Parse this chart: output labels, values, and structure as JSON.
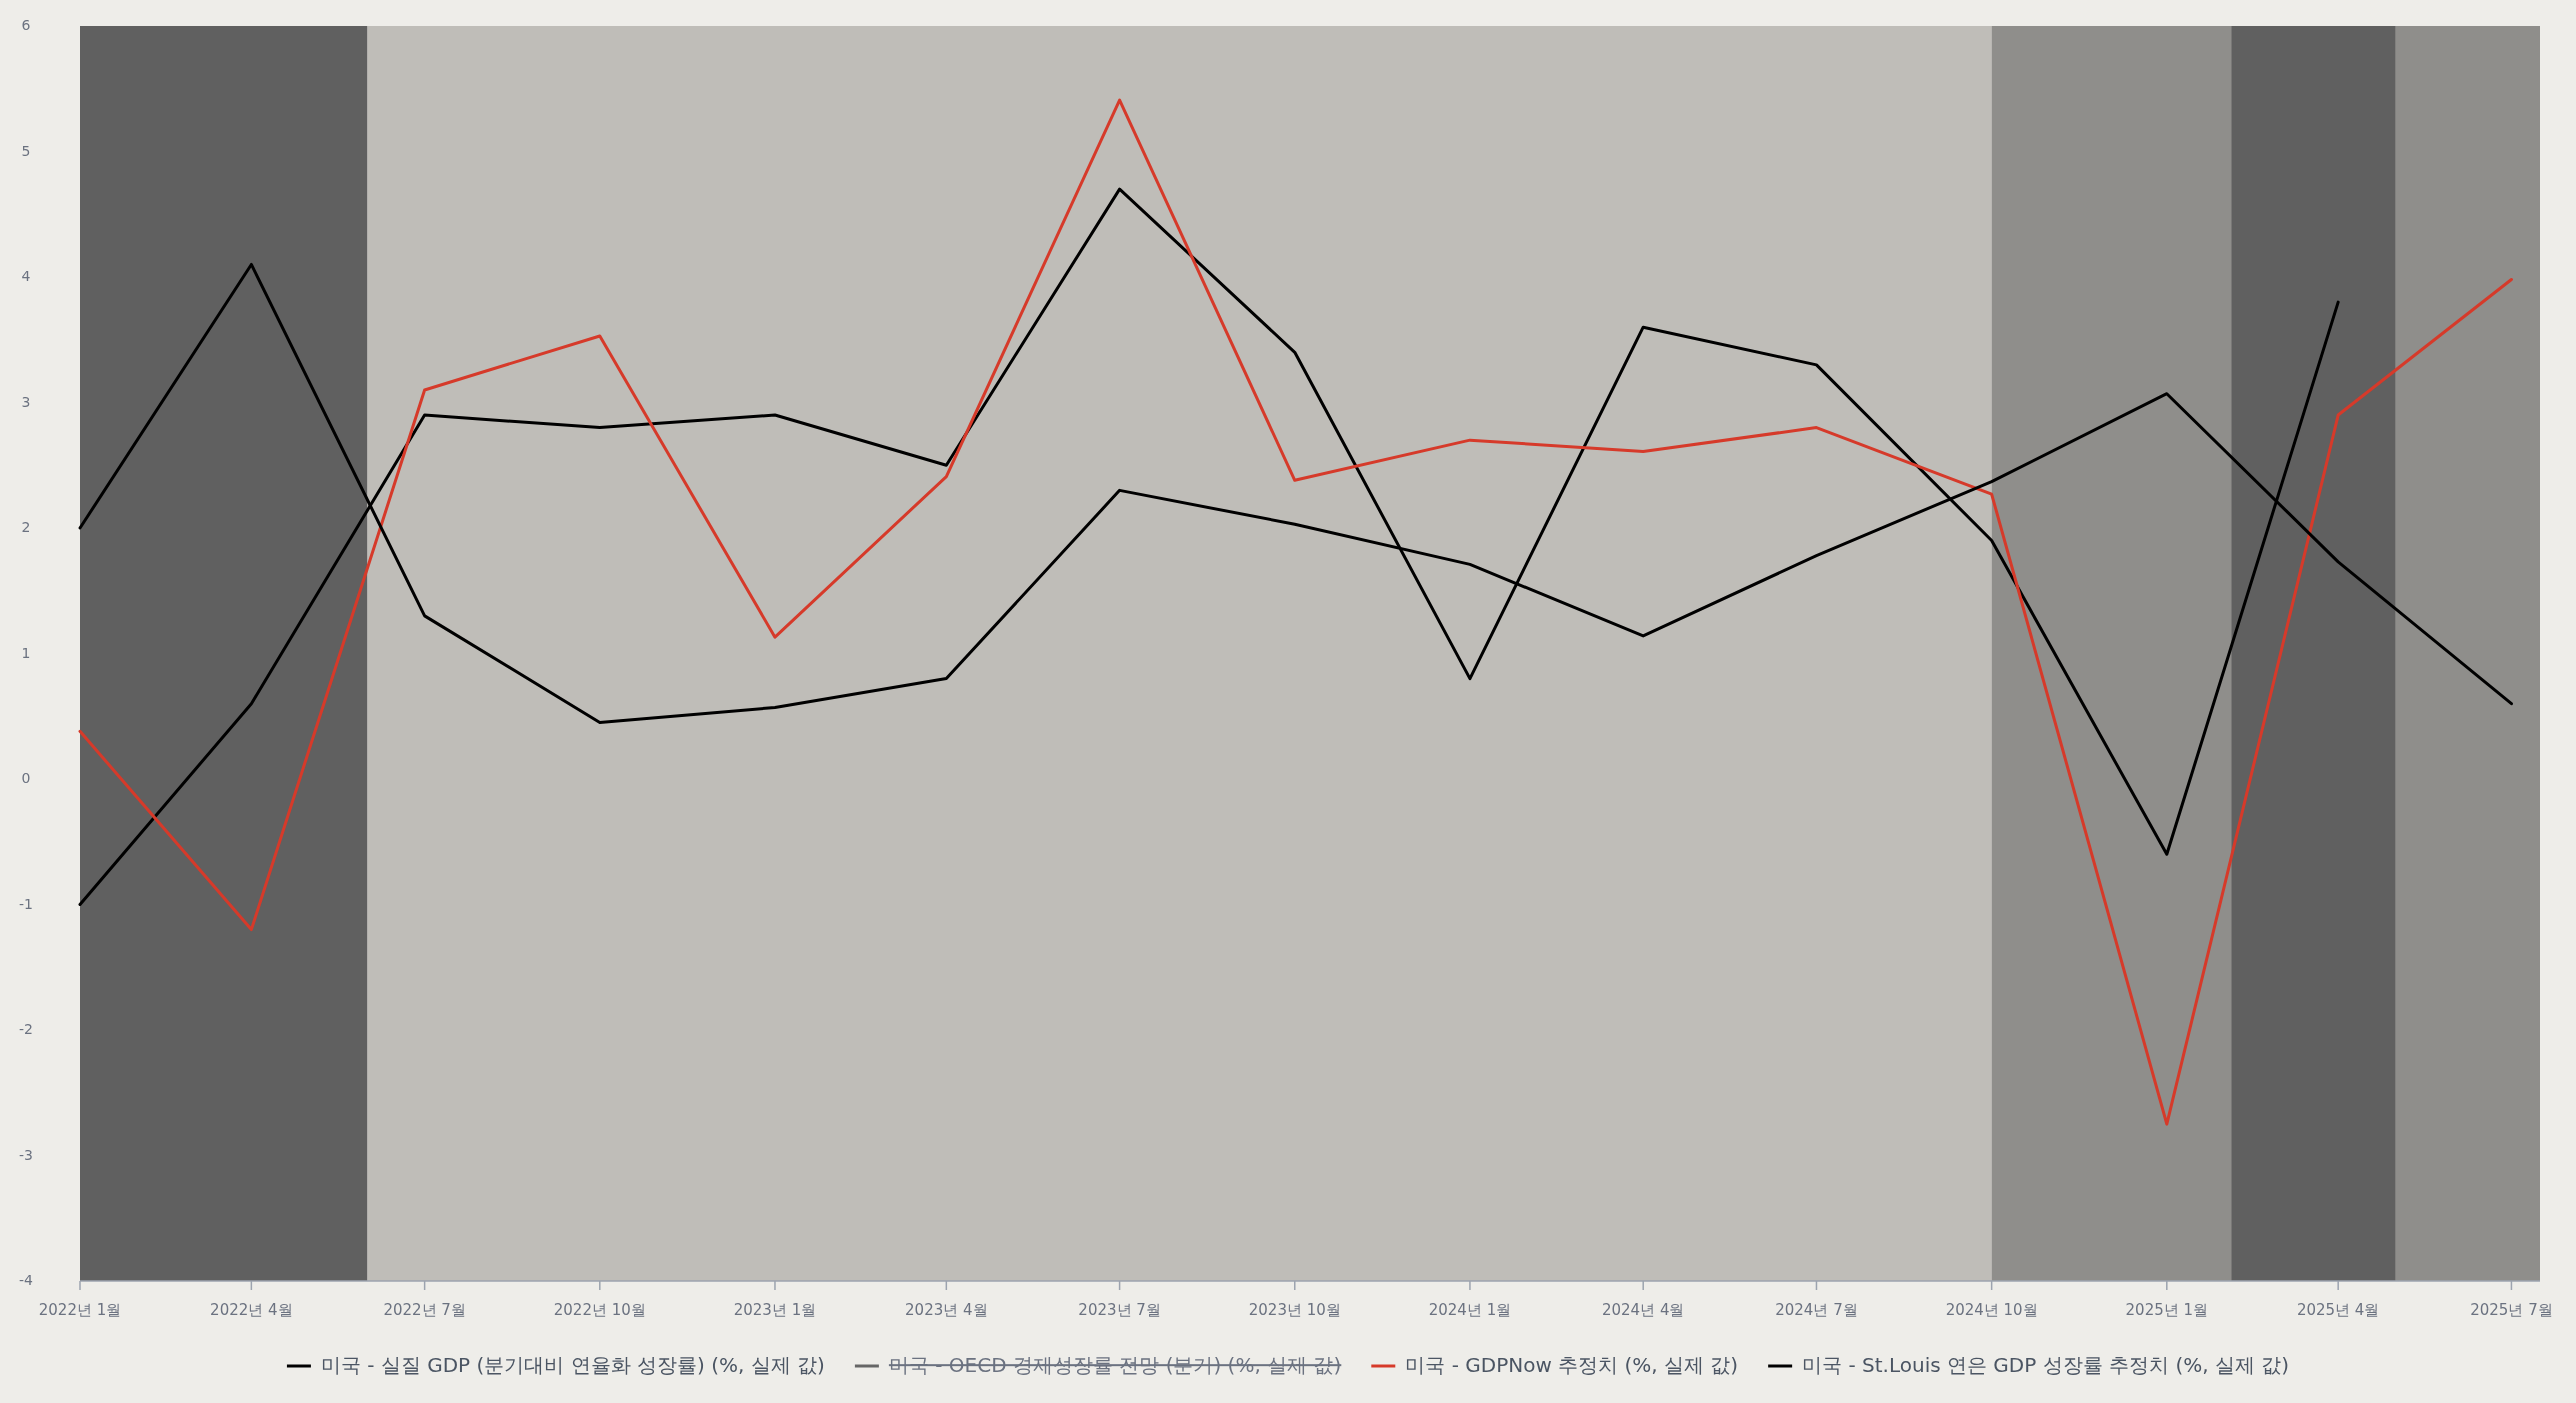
{
  "chart_data": {
    "type": "line",
    "x": [
      "2022-01",
      "2022-04",
      "2022-07",
      "2022-10",
      "2023-01",
      "2023-04",
      "2023-07",
      "2023-10",
      "2024-01",
      "2024-04",
      "2024-07",
      "2024-10",
      "2025-01",
      "2025-04",
      "2025-07"
    ],
    "series": [
      {
        "name": "미국 - 실질 GDP (분기대비 연율화 성장률) (%, 실제 값)",
        "color": "#000000",
        "values": [
          -1.0,
          0.6,
          2.9,
          2.8,
          2.9,
          2.5,
          4.7,
          3.4,
          0.8,
          3.6,
          3.3,
          1.9,
          -0.6,
          3.8,
          null
        ]
      },
      {
        "name": "미국 - OECD 경제성장률 전망 (분기) (%, 실제 값)",
        "color": "#666666",
        "values": [
          null,
          null,
          null,
          null,
          null,
          null,
          null,
          null,
          null,
          null,
          null,
          null,
          null,
          null,
          null
        ]
      },
      {
        "name": "미국 - GDPNow 추정치 (%, 실제 값)",
        "color": "#d63a2a",
        "values": [
          0.38,
          -1.2,
          3.1,
          3.53,
          1.13,
          2.41,
          5.41,
          2.38,
          2.7,
          2.61,
          2.8,
          2.27,
          -2.75,
          2.9,
          3.98
        ]
      },
      {
        "name": "미국 - St.Louis 연은 GDP 성장률 추정치 (%, 실제 값)",
        "color": "#000000",
        "values": [
          2.0,
          4.1,
          1.3,
          0.45,
          0.57,
          0.8,
          2.3,
          2.03,
          1.71,
          1.14,
          1.78,
          2.37,
          3.07,
          1.73,
          0.6
        ]
      }
    ],
    "bands": [
      {
        "axis": "x",
        "from": "2022-01",
        "to": "2022-06",
        "color": "#606060"
      },
      {
        "axis": "x",
        "from": "2022-06",
        "to": "2024-10",
        "color": "#bfbdb8"
      },
      {
        "axis": "x",
        "from": "2024-10",
        "to": "2025-07-16",
        "color": "#8f8e8b"
      },
      {
        "axis": "x",
        "from": "2025-02-04",
        "to": "2025-05",
        "color": "#606060"
      }
    ],
    "xlim": [
      "2022-01",
      "2025-07-16"
    ],
    "xticks": [
      {
        "value": "2022-01",
        "label": "2022년 1월"
      },
      {
        "value": "2022-04",
        "label": "2022년 4월"
      },
      {
        "value": "2022-07",
        "label": "2022년 7월"
      },
      {
        "value": "2022-10",
        "label": "2022년 10월"
      },
      {
        "value": "2023-01",
        "label": "2023년 1월"
      },
      {
        "value": "2023-04",
        "label": "2023년 4월"
      },
      {
        "value": "2023-07",
        "label": "2023년 7월"
      },
      {
        "value": "2023-10",
        "label": "2023년 10월"
      },
      {
        "value": "2024-01",
        "label": "2024년 1월"
      },
      {
        "value": "2024-04",
        "label": "2024년 4월"
      },
      {
        "value": "2024-07",
        "label": "2024년 7월"
      },
      {
        "value": "2024-10",
        "label": "2024년 10월"
      },
      {
        "value": "2025-01",
        "label": "2025년 1월"
      },
      {
        "value": "2025-04",
        "label": "2025년 4월"
      },
      {
        "value": "2025-07",
        "label": "2025년 7월"
      }
    ],
    "ylim": [
      -4,
      6
    ],
    "yticks": [
      -4,
      -3,
      -2,
      -1,
      0,
      1,
      2,
      3,
      4,
      5,
      6
    ],
    "grid": false,
    "legend": "bottom",
    "line_style": "solid",
    "marker": "none"
  }
}
